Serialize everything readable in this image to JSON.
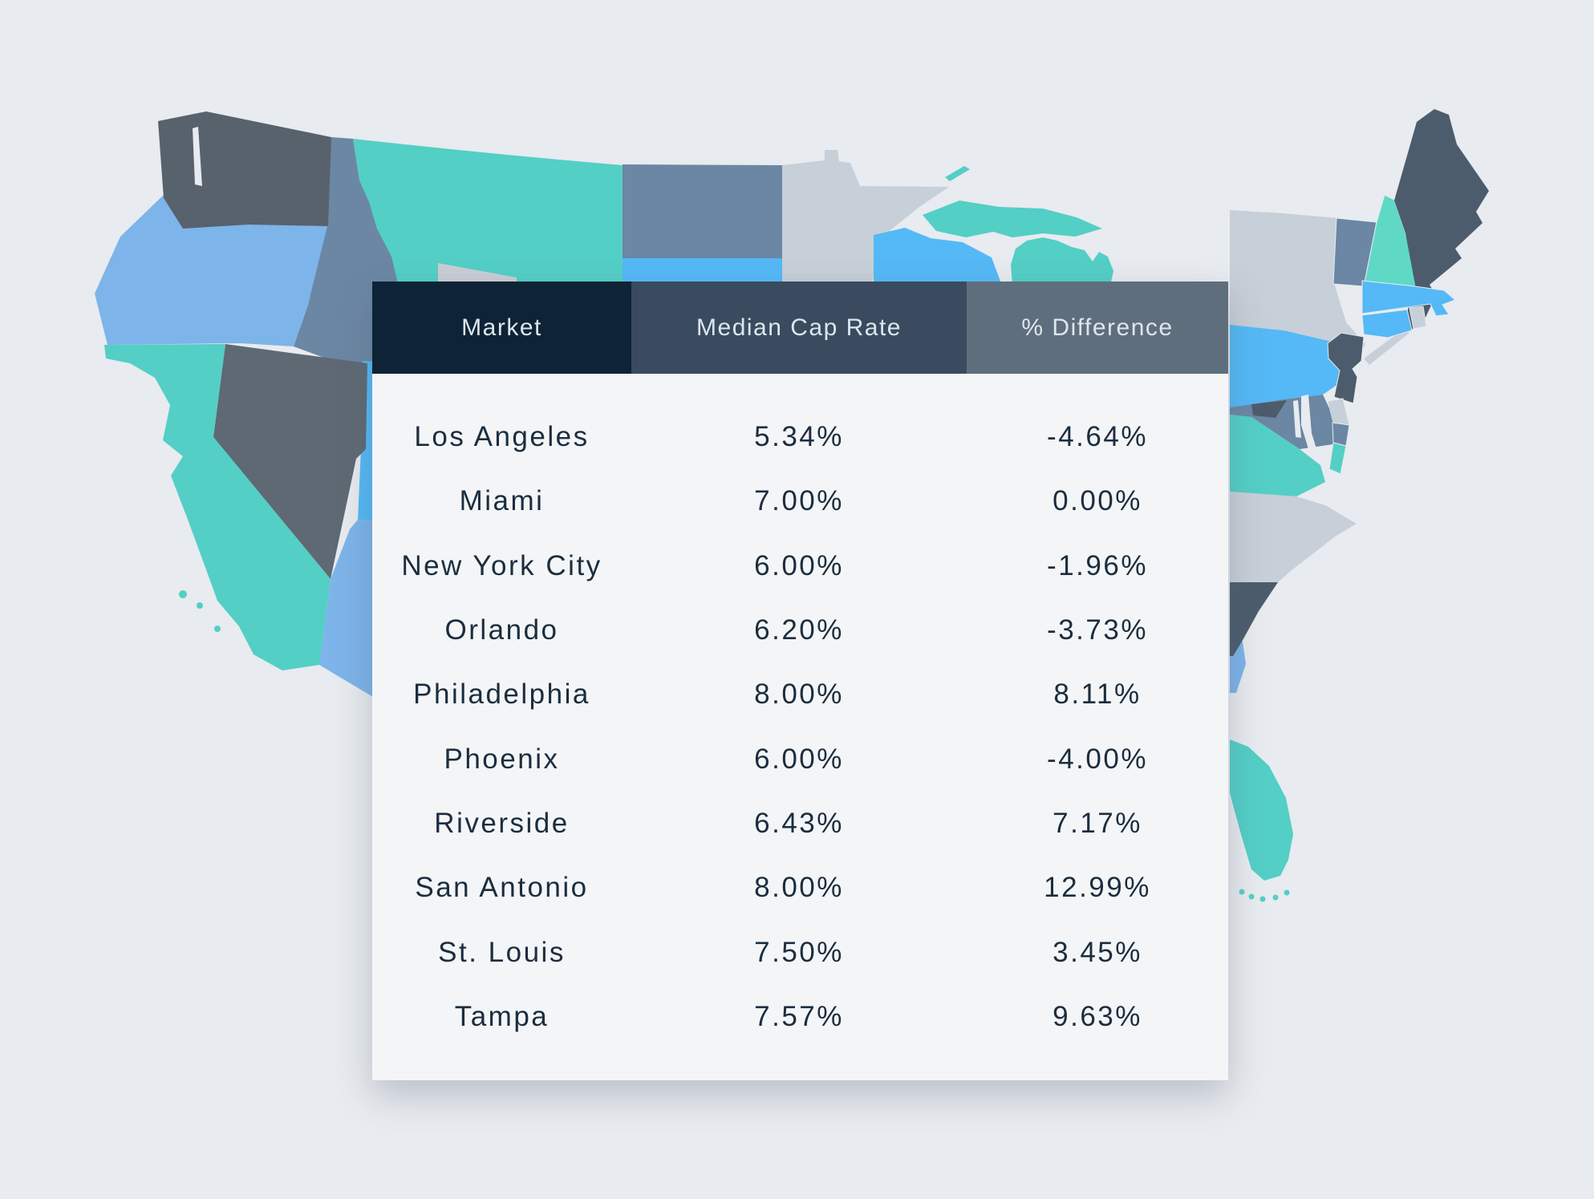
{
  "page": {
    "background": "#e8ebef"
  },
  "chart_data": {
    "type": "table",
    "columns": [
      "Market",
      "Median Cap Rate",
      "% Difference"
    ],
    "rows": [
      [
        "Los Angeles",
        "5.34%",
        "-4.64%"
      ],
      [
        "Miami",
        "7.00%",
        "0.00%"
      ],
      [
        "New York City",
        "6.00%",
        "-1.96%"
      ],
      [
        "Orlando",
        "6.20%",
        "-3.73%"
      ],
      [
        "Philadelphia",
        "8.00%",
        "8.11%"
      ],
      [
        "Phoenix",
        "6.00%",
        "-4.00%"
      ],
      [
        "Riverside",
        "6.43%",
        "7.17%"
      ],
      [
        "San Antonio",
        "8.00%",
        "12.99%"
      ],
      [
        "St. Louis",
        "7.50%",
        "3.45%"
      ],
      [
        "Tampa",
        "7.57%",
        "9.63%"
      ]
    ]
  },
  "table_style": {
    "header_backgrounds": [
      "#0e2336",
      "#3a4b5f",
      "#5f6e7d"
    ],
    "header_text_color": "#dde6ec",
    "body_background": "#f3f5f7",
    "row_text_color": "#1b2d3e"
  },
  "map": {
    "palette": {
      "teal": "#53cfc6",
      "tealLight": "#5fd9c6",
      "slateBlue": "#6b87a4",
      "brightBlue": "#54b9f6",
      "lightBlue": "#7db4e9",
      "washingtonGray": "#57626d",
      "nevadaGray": "#5e6973",
      "darkSlate": "#4d5c6c",
      "lightGray": "#c7cfd8",
      "wedgeGray": "#c9cdd5",
      "water": "#e8ebef"
    },
    "states": [
      {
        "id": "montana-wyoming",
        "fill": "teal"
      },
      {
        "id": "wyoming-wedge",
        "fill": "wedgeGray"
      },
      {
        "id": "north-dakota",
        "fill": "slateBlue"
      },
      {
        "id": "south-dakota",
        "fill": "brightBlue"
      },
      {
        "id": "minnesota",
        "fill": "lightGray"
      },
      {
        "id": "wisconsin",
        "fill": "brightBlue"
      },
      {
        "id": "michigan-up",
        "fill": "teal"
      },
      {
        "id": "isle-royale",
        "fill": "teal"
      },
      {
        "id": "michigan-lower",
        "fill": "teal"
      },
      {
        "id": "idaho",
        "fill": "slateBlue"
      },
      {
        "id": "oregon",
        "fill": "lightBlue"
      },
      {
        "id": "washington",
        "fill": "washingtonGray"
      },
      {
        "id": "puget-sound",
        "fill": "water"
      },
      {
        "id": "utah",
        "fill": "brightBlue"
      },
      {
        "id": "arizona",
        "fill": "lightBlue"
      },
      {
        "id": "nevada",
        "fill": "nevadaGray"
      },
      {
        "id": "california",
        "fill": "teal"
      },
      {
        "id": "channel-island-1",
        "fill": "teal"
      },
      {
        "id": "channel-island-2",
        "fill": "teal"
      },
      {
        "id": "channel-island-3",
        "fill": "teal"
      },
      {
        "id": "new-york",
        "fill": "lightGray"
      },
      {
        "id": "long-island",
        "fill": "lightGray"
      },
      {
        "id": "vermont",
        "fill": "slateBlue"
      },
      {
        "id": "new-hampshire",
        "fill": "tealLight"
      },
      {
        "id": "maine",
        "fill": "darkSlate"
      },
      {
        "id": "massachusetts",
        "fill": "brightBlue"
      },
      {
        "id": "rhode-island",
        "fill": "lightGray"
      },
      {
        "id": "connecticut",
        "fill": "brightBlue"
      },
      {
        "id": "pennsylvania",
        "fill": "brightBlue"
      },
      {
        "id": "new-jersey",
        "fill": "darkSlate"
      },
      {
        "id": "delaware",
        "fill": "lightGray"
      },
      {
        "id": "maryland",
        "fill": "slateBlue"
      },
      {
        "id": "west-virginia",
        "fill": "darkSlate"
      },
      {
        "id": "chesapeake-bay-1",
        "fill": "water"
      },
      {
        "id": "chesapeake-bay-2",
        "fill": "water"
      },
      {
        "id": "maryland-eastern-shore",
        "fill": "slateBlue"
      },
      {
        "id": "virginia-eastern-shore",
        "fill": "teal"
      },
      {
        "id": "virginia",
        "fill": "teal"
      },
      {
        "id": "north-carolina",
        "fill": "lightGray"
      },
      {
        "id": "georgia",
        "fill": "lightBlue"
      },
      {
        "id": "south-carolina",
        "fill": "darkSlate"
      },
      {
        "id": "florida",
        "fill": "teal"
      },
      {
        "id": "florida-key-1",
        "fill": "teal"
      },
      {
        "id": "florida-key-2",
        "fill": "teal"
      },
      {
        "id": "florida-key-3",
        "fill": "teal"
      },
      {
        "id": "florida-key-4",
        "fill": "teal"
      },
      {
        "id": "florida-key-5",
        "fill": "teal"
      }
    ]
  }
}
